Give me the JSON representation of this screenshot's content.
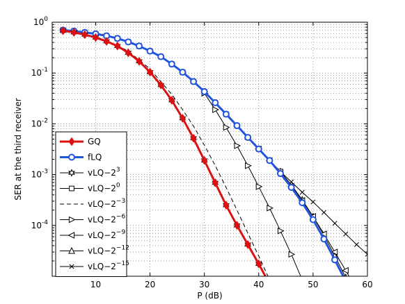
{
  "chart_data": {
    "type": "line",
    "xlabel": "P (dB)",
    "ylabel": "SER at the third receiver",
    "xlim": [
      2,
      60
    ],
    "ylim_log10": [
      -5,
      0
    ],
    "yscale": "log",
    "grid": "dotted, major and minor",
    "legend_position": "lower-left",
    "x_ticks": [
      10,
      20,
      30,
      40,
      50,
      60
    ],
    "x_tick_labels": [
      "10",
      "20",
      "30",
      "40",
      "50",
      "60"
    ],
    "y_ticks": [
      {
        "base": "10",
        "exp": "0",
        "value": 1
      },
      {
        "base": "10",
        "exp": "-1",
        "value": 0.1
      },
      {
        "base": "10",
        "exp": "-2",
        "value": 0.01
      },
      {
        "base": "10",
        "exp": "-3",
        "value": 0.001
      },
      {
        "base": "10",
        "exp": "-4",
        "value": 0.0001
      }
    ],
    "series": [
      {
        "name": "GQ",
        "base": "GQ",
        "exp": "",
        "color": "#dd1111",
        "width": 3,
        "dash": "",
        "marker": "diamond",
        "filled": true,
        "x": [
          4,
          6,
          8,
          10,
          12,
          14,
          16,
          18,
          20,
          22,
          24,
          26,
          28,
          30,
          32,
          34,
          36,
          38,
          40,
          42
        ],
        "y": [
          0.68,
          0.63,
          0.57,
          0.5,
          0.42,
          0.34,
          0.25,
          0.17,
          0.104,
          0.058,
          0.029,
          0.0128,
          0.0052,
          0.0019,
          0.00069,
          0.00025,
          0.0001,
          4.2e-05,
          1.75e-05,
          7e-06
        ]
      },
      {
        "name": "fLQ",
        "base": "fLQ",
        "exp": "",
        "color": "#2255dd",
        "width": 3,
        "dash": "",
        "marker": "circle",
        "filled": false,
        "x": [
          4,
          6,
          8,
          10,
          12,
          14,
          16,
          18,
          20,
          22,
          24,
          26,
          28,
          30,
          32,
          34,
          36,
          38,
          40,
          42,
          44,
          46,
          48,
          50,
          52,
          54,
          56
        ],
        "y": [
          0.7,
          0.67,
          0.63,
          0.59,
          0.54,
          0.48,
          0.41,
          0.34,
          0.27,
          0.21,
          0.15,
          0.104,
          0.068,
          0.043,
          0.026,
          0.0155,
          0.0092,
          0.0054,
          0.0032,
          0.0019,
          0.00105,
          0.00056,
          0.00028,
          0.00013,
          5.4e-05,
          2.1e-05,
          8e-06
        ]
      },
      {
        "name": "vLQ-2^3",
        "base": "vLQ−2",
        "exp": "3",
        "color": "#000000",
        "width": 1,
        "dash": "",
        "marker": "star",
        "filled": false,
        "x": [
          4,
          6,
          8,
          10,
          12,
          14,
          16,
          18,
          20,
          22,
          24,
          26,
          28,
          30,
          32,
          34,
          36,
          38,
          40,
          42
        ],
        "y": [
          0.68,
          0.63,
          0.57,
          0.5,
          0.42,
          0.34,
          0.25,
          0.17,
          0.104,
          0.058,
          0.029,
          0.0128,
          0.0052,
          0.0019,
          0.00069,
          0.00025,
          0.0001,
          4.2e-05,
          1.75e-05,
          7e-06
        ]
      },
      {
        "name": "vLQ-2^0",
        "base": "vLQ−2",
        "exp": "0",
        "color": "#000000",
        "width": 1,
        "dash": "",
        "marker": "square",
        "filled": false,
        "x": [
          4,
          6,
          8,
          10,
          12,
          14,
          16,
          18,
          20,
          22,
          24,
          26,
          28,
          30,
          32,
          34,
          36,
          38,
          40,
          42,
          44
        ],
        "y": [
          0.7,
          0.67,
          0.63,
          0.59,
          0.54,
          0.48,
          0.41,
          0.34,
          0.27,
          0.21,
          0.15,
          0.104,
          0.068,
          0.043,
          0.026,
          0.0155,
          0.0092,
          0.0054,
          0.0032,
          0.0019,
          0.00115
        ]
      },
      {
        "name": "vLQ-2^-3",
        "base": "vLQ−2",
        "exp": "−3",
        "color": "#000000",
        "width": 1,
        "dash": "6,4",
        "marker": "none",
        "filled": false,
        "x": [
          4,
          8,
          12,
          16,
          20,
          24,
          26,
          28,
          30,
          32,
          34,
          36,
          38,
          40,
          42,
          43
        ],
        "y": [
          0.68,
          0.58,
          0.44,
          0.27,
          0.12,
          0.038,
          0.019,
          0.009,
          0.0038,
          0.0015,
          0.00056,
          0.0002,
          7e-05,
          2.5e-05,
          8.5e-06,
          5e-06
        ]
      },
      {
        "name": "vLQ-2^-6",
        "base": "vLQ−2",
        "exp": "−6",
        "color": "#000000",
        "width": 1,
        "dash": "",
        "marker": "tri-right",
        "filled": false,
        "x": [
          30,
          32,
          34,
          36,
          38,
          40,
          42,
          44,
          46,
          48
        ],
        "y": [
          0.04,
          0.019,
          0.0085,
          0.0037,
          0.0015,
          0.00058,
          0.00022,
          7.8e-05,
          2.7e-05,
          8.5e-06
        ]
      },
      {
        "name": "vLQ-2^-9",
        "base": "vLQ−2",
        "exp": "−9",
        "color": "#000000",
        "width": 1,
        "dash": "",
        "marker": "tri-left",
        "filled": false,
        "x": [
          40,
          42,
          44,
          46,
          48,
          50,
          52,
          54,
          56,
          58
        ],
        "y": [
          0.0032,
          0.0019,
          0.00108,
          0.00059,
          0.00031,
          0.00015,
          6.8e-05,
          3e-05,
          1.3e-05,
          5.5e-06
        ]
      },
      {
        "name": "vLQ-2^-12",
        "base": "vLQ−2",
        "exp": "−12",
        "color": "#000000",
        "width": 1,
        "dash": "",
        "marker": "tri-up",
        "filled": false,
        "x": [
          44,
          46,
          48,
          50,
          52,
          54,
          56,
          58
        ],
        "y": [
          0.00115,
          0.00063,
          0.00032,
          0.00015,
          6.4e-05,
          2.5e-05,
          9.5e-06,
          3.5e-06
        ]
      },
      {
        "name": "vLQ-2^-15",
        "base": "vLQ−2",
        "exp": "−15",
        "color": "#000000",
        "width": 1,
        "dash": "",
        "marker": "x",
        "filled": false,
        "x": [
          30,
          32,
          34,
          36,
          38,
          40,
          42,
          44,
          46,
          48,
          50,
          52,
          54,
          56,
          58,
          60
        ],
        "y": [
          0.043,
          0.026,
          0.0155,
          0.0092,
          0.0054,
          0.0032,
          0.0019,
          0.00115,
          0.00072,
          0.00045,
          0.00029,
          0.00018,
          0.00011,
          6.8e-05,
          4.2e-05,
          2.7e-05
        ]
      }
    ]
  }
}
